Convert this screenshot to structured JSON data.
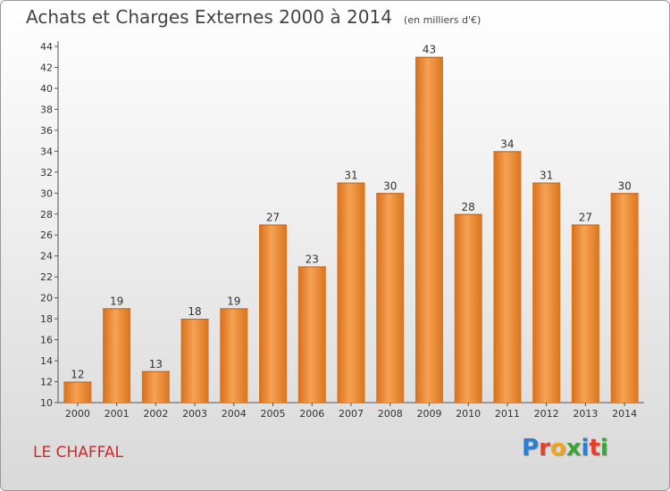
{
  "chart_data": {
    "type": "bar",
    "title": "Achats et Charges Externes 2000 à 2014",
    "subtitle": "(en milliers d'€)",
    "categories": [
      "2000",
      "2001",
      "2002",
      "2003",
      "2004",
      "2005",
      "2006",
      "2007",
      "2008",
      "2009",
      "2010",
      "2011",
      "2012",
      "2013",
      "2014"
    ],
    "values": [
      12,
      19,
      13,
      18,
      19,
      27,
      23,
      31,
      30,
      43,
      28,
      34,
      31,
      27,
      30
    ],
    "ylim": [
      10,
      44
    ],
    "yticks": [
      10,
      12,
      14,
      16,
      18,
      20,
      22,
      24,
      26,
      28,
      30,
      32,
      34,
      36,
      38,
      40,
      42,
      44
    ],
    "grid": false,
    "bar_color": "#f0923e"
  },
  "footer": {
    "place": "LE CHAFFAL",
    "logo_letters": [
      {
        "char": "P",
        "color": "#2a7fd1"
      },
      {
        "char": "r",
        "color": "#e6402a"
      },
      {
        "char": "o",
        "color": "#f2a51a"
      },
      {
        "char": "x",
        "color": "#3aa63a"
      },
      {
        "char": "i",
        "color": "#2a7fd1"
      },
      {
        "char": "t",
        "color": "#e6402a"
      },
      {
        "char": "i",
        "color": "#3aa63a"
      }
    ]
  }
}
